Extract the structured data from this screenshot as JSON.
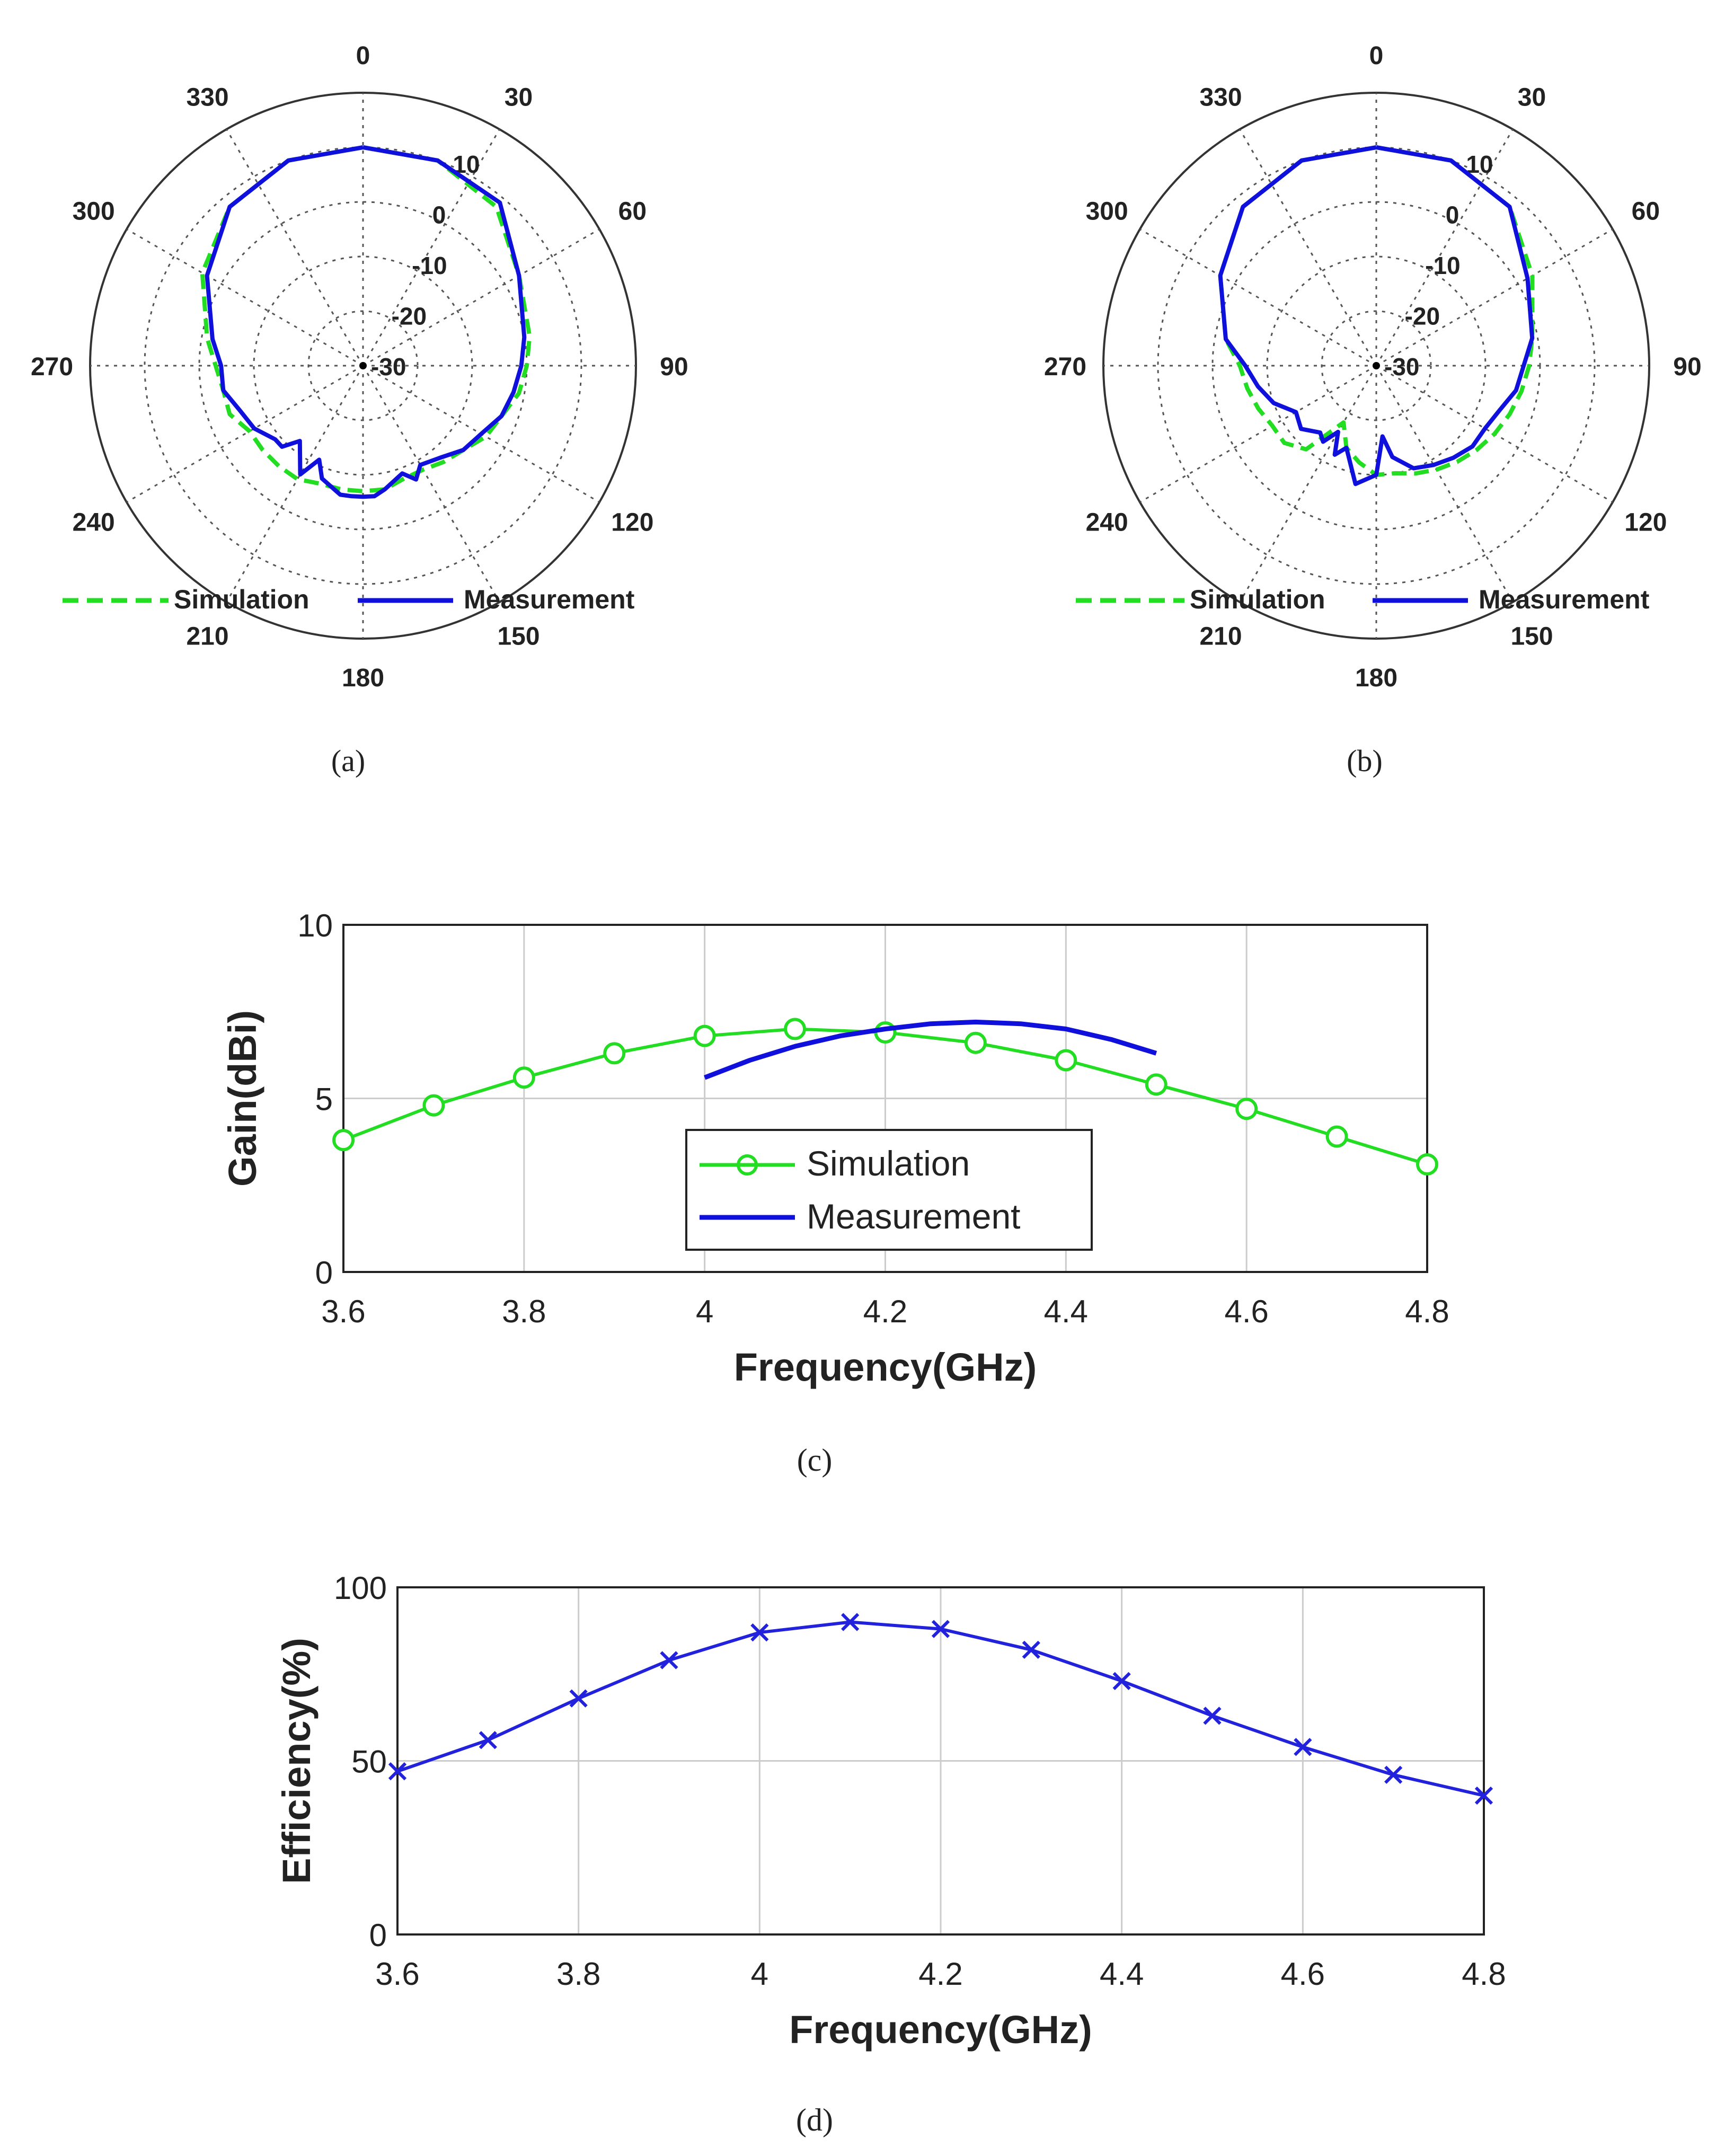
{
  "colors": {
    "simulation": "#22dd22",
    "measurement": "#1010dd",
    "efficiency": "#2222dd",
    "grid": "#cccccc",
    "axis": "#333333"
  },
  "chart_data": [
    {
      "id": "a",
      "type": "polar",
      "caption": "(a)",
      "angle_labels": [
        "0",
        "30",
        "60",
        "90",
        "120",
        "150",
        "180",
        "210",
        "240",
        "270",
        "300",
        "330"
      ],
      "radial_labels": [
        "10",
        "0",
        "-10",
        "-20",
        "-30"
      ],
      "rlim": [
        -30,
        20
      ],
      "legend": {
        "position": "bottom",
        "entries": [
          "Simulation",
          "Measurement"
        ]
      },
      "series": [
        {
          "name": "Simulation",
          "style": "dashed",
          "angles": [
            0,
            20,
            40,
            60,
            80,
            90,
            100,
            110,
            120,
            130,
            140,
            150,
            160,
            170,
            180,
            190,
            200,
            210,
            220,
            230,
            240,
            250,
            260,
            270,
            280,
            300,
            320,
            340,
            360
          ],
          "values": [
            10,
            10,
            8,
            3,
            1,
            0,
            -1,
            -3,
            -4,
            -6,
            -7,
            -8,
            -8,
            -7,
            -7,
            -7,
            -7,
            -6,
            -6,
            -6,
            -6,
            -4,
            -4,
            -3,
            -1,
            4,
            8,
            10,
            10
          ]
        },
        {
          "name": "Measurement",
          "style": "solid",
          "angles": [
            0,
            20,
            40,
            60,
            80,
            90,
            100,
            110,
            120,
            130,
            140,
            150,
            155,
            160,
            170,
            175,
            180,
            185,
            190,
            200,
            205,
            210,
            220,
            225,
            230,
            240,
            250,
            260,
            270,
            280,
            300,
            320,
            340,
            360
          ],
          "values": [
            10,
            10,
            9,
            3,
            0,
            -1,
            -2,
            -3,
            -5,
            -6,
            -8,
            -9,
            -7,
            -9,
            -7,
            -6,
            -6,
            -6,
            -6,
            -8,
            -11,
            -7,
            -12,
            -9,
            -9,
            -7,
            -6,
            -4,
            -4,
            -2,
            3,
            8,
            10,
            10
          ]
        }
      ]
    },
    {
      "id": "b",
      "type": "polar",
      "caption": "(b)",
      "angle_labels": [
        "0",
        "30",
        "60",
        "90",
        "120",
        "150",
        "180",
        "210",
        "240",
        "270",
        "300",
        "330"
      ],
      "radial_labels": [
        "10",
        "0",
        "-10",
        "-20",
        "-30"
      ],
      "rlim": [
        -30,
        20
      ],
      "legend": {
        "position": "bottom",
        "entries": [
          "Simulation",
          "Measurement"
        ]
      },
      "series": [
        {
          "name": "Simulation",
          "style": "dashed",
          "angles": [
            0,
            20,
            40,
            60,
            80,
            90,
            100,
            110,
            120,
            130,
            140,
            150,
            160,
            170,
            180,
            190,
            200,
            210,
            220,
            230,
            240,
            250,
            260,
            270,
            280,
            300,
            320,
            340,
            360
          ],
          "values": [
            10,
            10,
            8,
            3,
            -1,
            -2,
            -3,
            -4,
            -5,
            -6,
            -7,
            -8,
            -9,
            -10,
            -10,
            -12,
            -14,
            -18,
            -10,
            -8,
            -8,
            -7,
            -6,
            -5,
            -2,
            3,
            8,
            10,
            10
          ]
        },
        {
          "name": "Measurement",
          "style": "solid",
          "angles": [
            0,
            20,
            40,
            60,
            80,
            90,
            100,
            110,
            120,
            130,
            140,
            150,
            160,
            170,
            175,
            180,
            190,
            200,
            205,
            210,
            215,
            220,
            230,
            240,
            250,
            260,
            270,
            280,
            300,
            320,
            340,
            360
          ],
          "values": [
            10,
            10,
            8,
            2,
            -1,
            -3,
            -4,
            -6,
            -7,
            -7,
            -8,
            -9,
            -10,
            -13,
            -17,
            -10,
            -8,
            -14,
            -12,
            -16,
            -13,
            -14,
            -12,
            -13,
            -10,
            -8,
            -6,
            -2,
            3,
            8,
            10,
            10
          ]
        }
      ]
    },
    {
      "id": "c",
      "type": "line",
      "caption": "(c)",
      "xlabel": "Frequency(GHz)",
      "ylabel": "Gain(dBi)",
      "xlim": [
        3.6,
        4.8
      ],
      "ylim": [
        0,
        10
      ],
      "xticks": [
        "3.6",
        "3.8",
        "4",
        "4.2",
        "4.4",
        "4.6",
        "4.8"
      ],
      "yticks": [
        "0",
        "5",
        "10"
      ],
      "legend": {
        "position": "center",
        "entries": [
          "Simulation",
          "Measurement"
        ]
      },
      "series": [
        {
          "name": "Simulation",
          "marker": "circle",
          "x": [
            3.6,
            3.7,
            3.8,
            3.9,
            4.0,
            4.1,
            4.2,
            4.3,
            4.4,
            4.5,
            4.6,
            4.7,
            4.8
          ],
          "values": [
            3.8,
            4.8,
            5.6,
            6.3,
            6.8,
            7.0,
            6.9,
            6.6,
            6.1,
            5.4,
            4.7,
            3.9,
            3.1
          ]
        },
        {
          "name": "Measurement",
          "marker": "none",
          "x": [
            4.0,
            4.05,
            4.1,
            4.15,
            4.2,
            4.25,
            4.3,
            4.35,
            4.4,
            4.45,
            4.5
          ],
          "values": [
            5.6,
            6.1,
            6.5,
            6.8,
            7.0,
            7.15,
            7.2,
            7.15,
            7.0,
            6.7,
            6.3
          ]
        }
      ]
    },
    {
      "id": "d",
      "type": "line",
      "caption": "(d)",
      "xlabel": "Frequency(GHz)",
      "ylabel": "Efficiency(%)",
      "xlim": [
        3.6,
        4.8
      ],
      "ylim": [
        0,
        100
      ],
      "xticks": [
        "3.6",
        "3.8",
        "4",
        "4.2",
        "4.4",
        "4.6",
        "4.8"
      ],
      "yticks": [
        "0",
        "50",
        "100"
      ],
      "series": [
        {
          "name": "Efficiency",
          "marker": "x",
          "x": [
            3.6,
            3.7,
            3.8,
            3.9,
            4.0,
            4.1,
            4.2,
            4.3,
            4.4,
            4.5,
            4.6,
            4.7,
            4.8
          ],
          "values": [
            47,
            56,
            68,
            79,
            87,
            90,
            88,
            82,
            73,
            63,
            54,
            46,
            40
          ]
        }
      ]
    }
  ]
}
